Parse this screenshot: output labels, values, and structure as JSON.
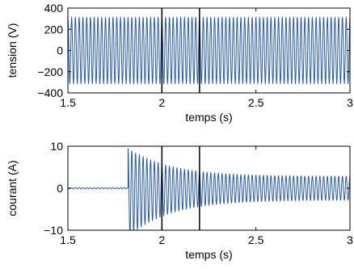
{
  "chart_data": [
    {
      "type": "line",
      "xlabel": "temps (s)",
      "ylabel": "tension (V)",
      "xlim": [
        1.5,
        3
      ],
      "ylim": [
        -400,
        400
      ],
      "xticks": [
        {
          "value": 1.5,
          "label": "1.5"
        },
        {
          "value": 2,
          "label": "2"
        },
        {
          "value": 2.5,
          "label": "2.5"
        },
        {
          "value": 3,
          "label": "3"
        }
      ],
      "yticks": [
        {
          "value": 400,
          "label": "400"
        },
        {
          "value": 200,
          "label": "200"
        },
        {
          "value": 0,
          "label": "0"
        },
        {
          "value": -200,
          "label": "−200"
        },
        {
          "value": -400,
          "label": "−400"
        }
      ],
      "grid": false,
      "legend": "none",
      "markers": [
        2.0,
        2.2
      ],
      "series": [
        {
          "color": "#2a5aa8",
          "waveform": "sinusoid",
          "frequency_hz": 50,
          "segments": [
            {
              "x_start": 1.5,
              "x_end": 3.0,
              "amplitude": 310,
              "offset": 0
            }
          ]
        }
      ]
    },
    {
      "type": "line",
      "xlabel": "temps (s)",
      "ylabel": "courant (A)",
      "xlim": [
        1.5,
        3
      ],
      "ylim": [
        -10,
        10
      ],
      "xticks": [
        {
          "value": 1.5,
          "label": "1.5"
        },
        {
          "value": 2,
          "label": "2"
        },
        {
          "value": 2.5,
          "label": "2.5"
        },
        {
          "value": 3,
          "label": "3"
        }
      ],
      "yticks": [
        {
          "value": 10,
          "label": "10"
        },
        {
          "value": 0,
          "label": "0"
        },
        {
          "value": -10,
          "label": "−10"
        }
      ],
      "grid": false,
      "legend": "none",
      "markers": [
        2.0,
        2.2
      ],
      "series": [
        {
          "color": "#2a5aa8",
          "waveform": "sinusoid",
          "frequency_hz": 50,
          "segments": [
            {
              "x_start": 1.5,
              "x_end": 1.82,
              "amplitude": 0.15,
              "offset": 0
            },
            {
              "x_start": 1.82,
              "x_end": 3.0,
              "amplitude_start": 10.5,
              "amplitude_end": 2.8,
              "decay_time_s": 0.22,
              "offset_start": -1.0,
              "offset_end": 0
            }
          ]
        }
      ]
    }
  ]
}
